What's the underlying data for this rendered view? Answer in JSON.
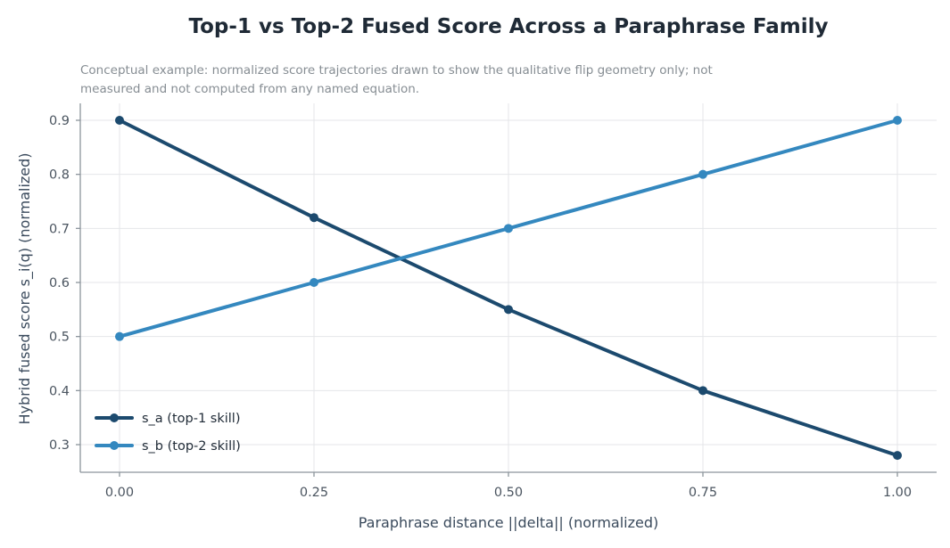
{
  "chart_data": {
    "type": "line",
    "title": "Top-1 vs Top-2 Fused Score Across a Paraphrase Family",
    "subtitle": [
      "Conceptual example: normalized score trajectories drawn to show the qualitative flip geometry only; not",
      "measured and not computed from any named equation."
    ],
    "xlabel": "Paraphrase distance ||delta|| (normalized)",
    "ylabel": "Hybrid fused score s_i(q) (normalized)",
    "x": [
      0.0,
      0.25,
      0.5,
      0.75,
      1.0
    ],
    "x_tick_labels": [
      "0.00",
      "0.25",
      "0.50",
      "0.75",
      "1.00"
    ],
    "y_ticks": [
      0.3,
      0.4,
      0.5,
      0.6,
      0.7,
      0.8,
      0.9
    ],
    "y_tick_labels": [
      "0.3",
      "0.4",
      "0.5",
      "0.6",
      "0.7",
      "0.8",
      "0.9"
    ],
    "xlim": [
      -0.05,
      1.05
    ],
    "ylim": [
      0.25,
      0.93
    ],
    "grid": true,
    "legend_position": "lower-left",
    "series": [
      {
        "name": "s_a (top-1 skill)",
        "values": [
          0.9,
          0.72,
          0.55,
          0.4,
          0.28
        ],
        "color": "#1c4a6e"
      },
      {
        "name": "s_b (top-2 skill)",
        "values": [
          0.5,
          0.6,
          0.7,
          0.8,
          0.9
        ],
        "color": "#3488bf"
      }
    ]
  }
}
